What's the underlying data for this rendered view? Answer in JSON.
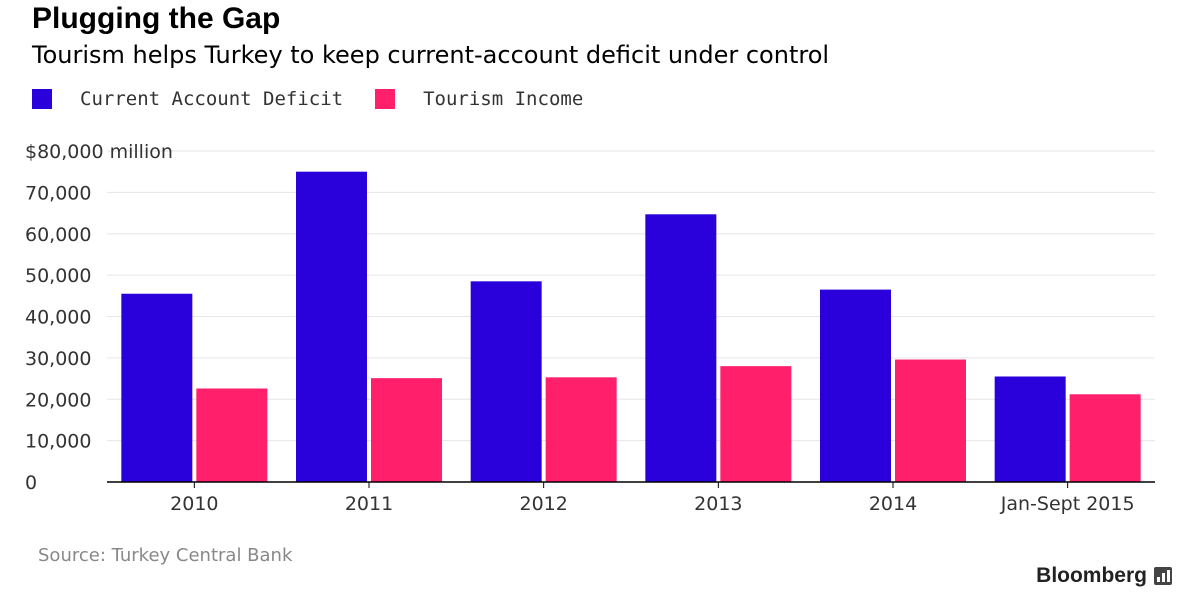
{
  "title": "Plugging the Gap",
  "subtitle": "Tourism helps Turkey to keep current-account deficit under control",
  "source": "Source: Turkey Central Bank",
  "brand": "Bloomberg",
  "brand_icon": "bloomberg-bars-icon",
  "colors": {
    "deficit": "#2a00db",
    "tourism": "#ff1f6b",
    "grid": "#e6e6e6",
    "axis": "#000000",
    "tick_text": "#333333"
  },
  "chart_data": {
    "type": "bar",
    "categories": [
      "2010",
      "2011",
      "2012",
      "2013",
      "2014",
      "Jan-Sept 2015"
    ],
    "series": [
      {
        "name": "Current Account Deficit",
        "values": [
          45500,
          75000,
          48500,
          64700,
          46500,
          25500
        ]
      },
      {
        "name": "Tourism Income",
        "values": [
          22600,
          25100,
          25300,
          28000,
          29600,
          21200
        ]
      }
    ],
    "ylim": [
      0,
      80000
    ],
    "yticks": [
      0,
      10000,
      20000,
      30000,
      40000,
      50000,
      60000,
      70000,
      80000
    ],
    "ytick_labels": [
      "0",
      "10,000",
      "20,000",
      "30,000",
      "40,000",
      "50,000",
      "60,000",
      "70,000",
      "$80,000 million"
    ],
    "grid": true,
    "legend_position": "top-left"
  }
}
